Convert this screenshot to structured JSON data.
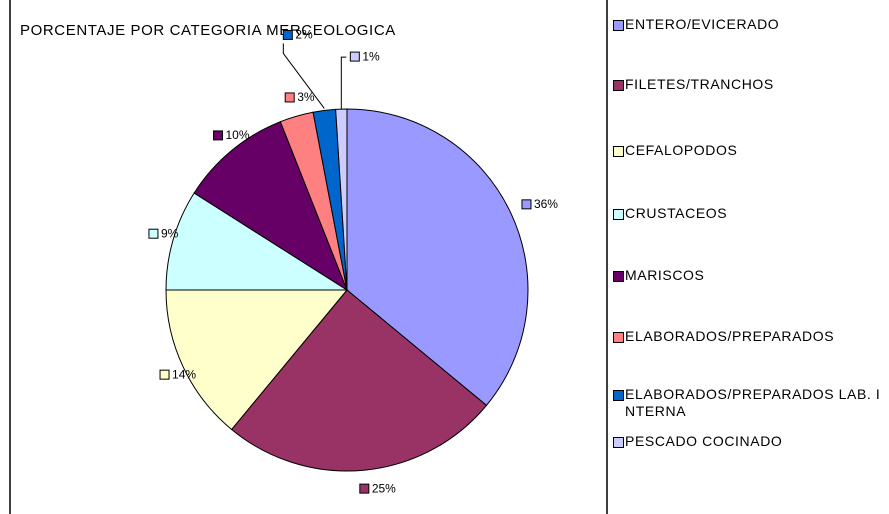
{
  "chart_data": {
    "type": "pie",
    "title": "PORCENTAJE POR CATEGORIA MERCEOLOGICA",
    "categories": [
      "ENTERO/EVICERADO",
      "FILETES/TRANCHOS",
      "CEFALOPODOS",
      "CRUSTACEOS",
      "MARISCOS",
      "ELABORADOS/PREPARADOS",
      "ELABORADOS/PREPARADOS LAB. INTERNA",
      "PESCADO COCINADO"
    ],
    "values": [
      36,
      25,
      14,
      9,
      10,
      3,
      2,
      1
    ],
    "value_labels": [
      "36%",
      "25%",
      "14%",
      "9%",
      "10%",
      "3%",
      "2%",
      "1%"
    ],
    "colors": [
      "#9999ff",
      "#993366",
      "#ffffcc",
      "#ccffff",
      "#660066",
      "#ff8080",
      "#0066cc",
      "#ccccff"
    ],
    "legend": "right"
  }
}
